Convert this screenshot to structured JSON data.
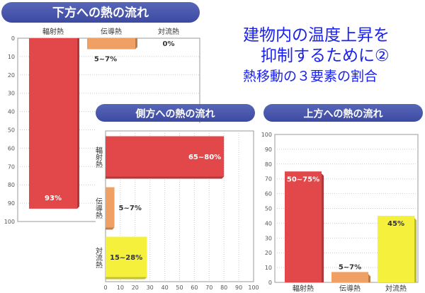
{
  "heading": {
    "line1": "建物内の温度上昇を",
    "line2": "抑制するために②",
    "line3": "熱移動の３要素の割合",
    "color": "#1a22ee"
  },
  "colors": {
    "radiation": "#e2474a",
    "conduction": "#f0a062",
    "convection": "#f5f03c",
    "title_pill": "#3c4aa2"
  },
  "chart_data": [
    {
      "type": "bar",
      "orientation": "vertical",
      "title": "下方への熱の流れ",
      "categories": [
        "輻射熱",
        "伝導熱",
        "対流熱"
      ],
      "values": [
        93,
        6,
        0
      ],
      "value_labels": [
        "93%",
        "5~7%",
        "0%"
      ],
      "axis": {
        "range": [
          0,
          100
        ],
        "inverted": true,
        "ticks": [
          "0",
          "10",
          "20",
          "30",
          "40",
          "50",
          "60",
          "70",
          "80",
          "90",
          "100"
        ]
      },
      "grid": true
    },
    {
      "type": "bar",
      "orientation": "horizontal",
      "title": "側方への熱の流れ",
      "categories": [
        "輻射熱",
        "伝導熱",
        "対流熱"
      ],
      "values": [
        80,
        6,
        28
      ],
      "value_labels": [
        "65~80%",
        "5~7%",
        "15~28%"
      ],
      "axis": {
        "range": [
          0,
          100
        ],
        "inverted": false,
        "ticks": [
          "0",
          "10",
          "20",
          "30",
          "40",
          "50",
          "60",
          "70",
          "80",
          "90",
          "100"
        ]
      },
      "grid": true
    },
    {
      "type": "bar",
      "orientation": "vertical",
      "title": "上方への熱の流れ",
      "categories": [
        "輻射熱",
        "伝導熱",
        "対流熱"
      ],
      "values": [
        75,
        7,
        45
      ],
      "value_labels": [
        "50~75%",
        "5~7%",
        "45%"
      ],
      "axis": {
        "range": [
          0,
          100
        ],
        "inverted": false,
        "ticks": [
          "0",
          "10",
          "20",
          "30",
          "40",
          "50",
          "60",
          "70",
          "80",
          "90",
          "100"
        ]
      },
      "grid": true
    }
  ]
}
